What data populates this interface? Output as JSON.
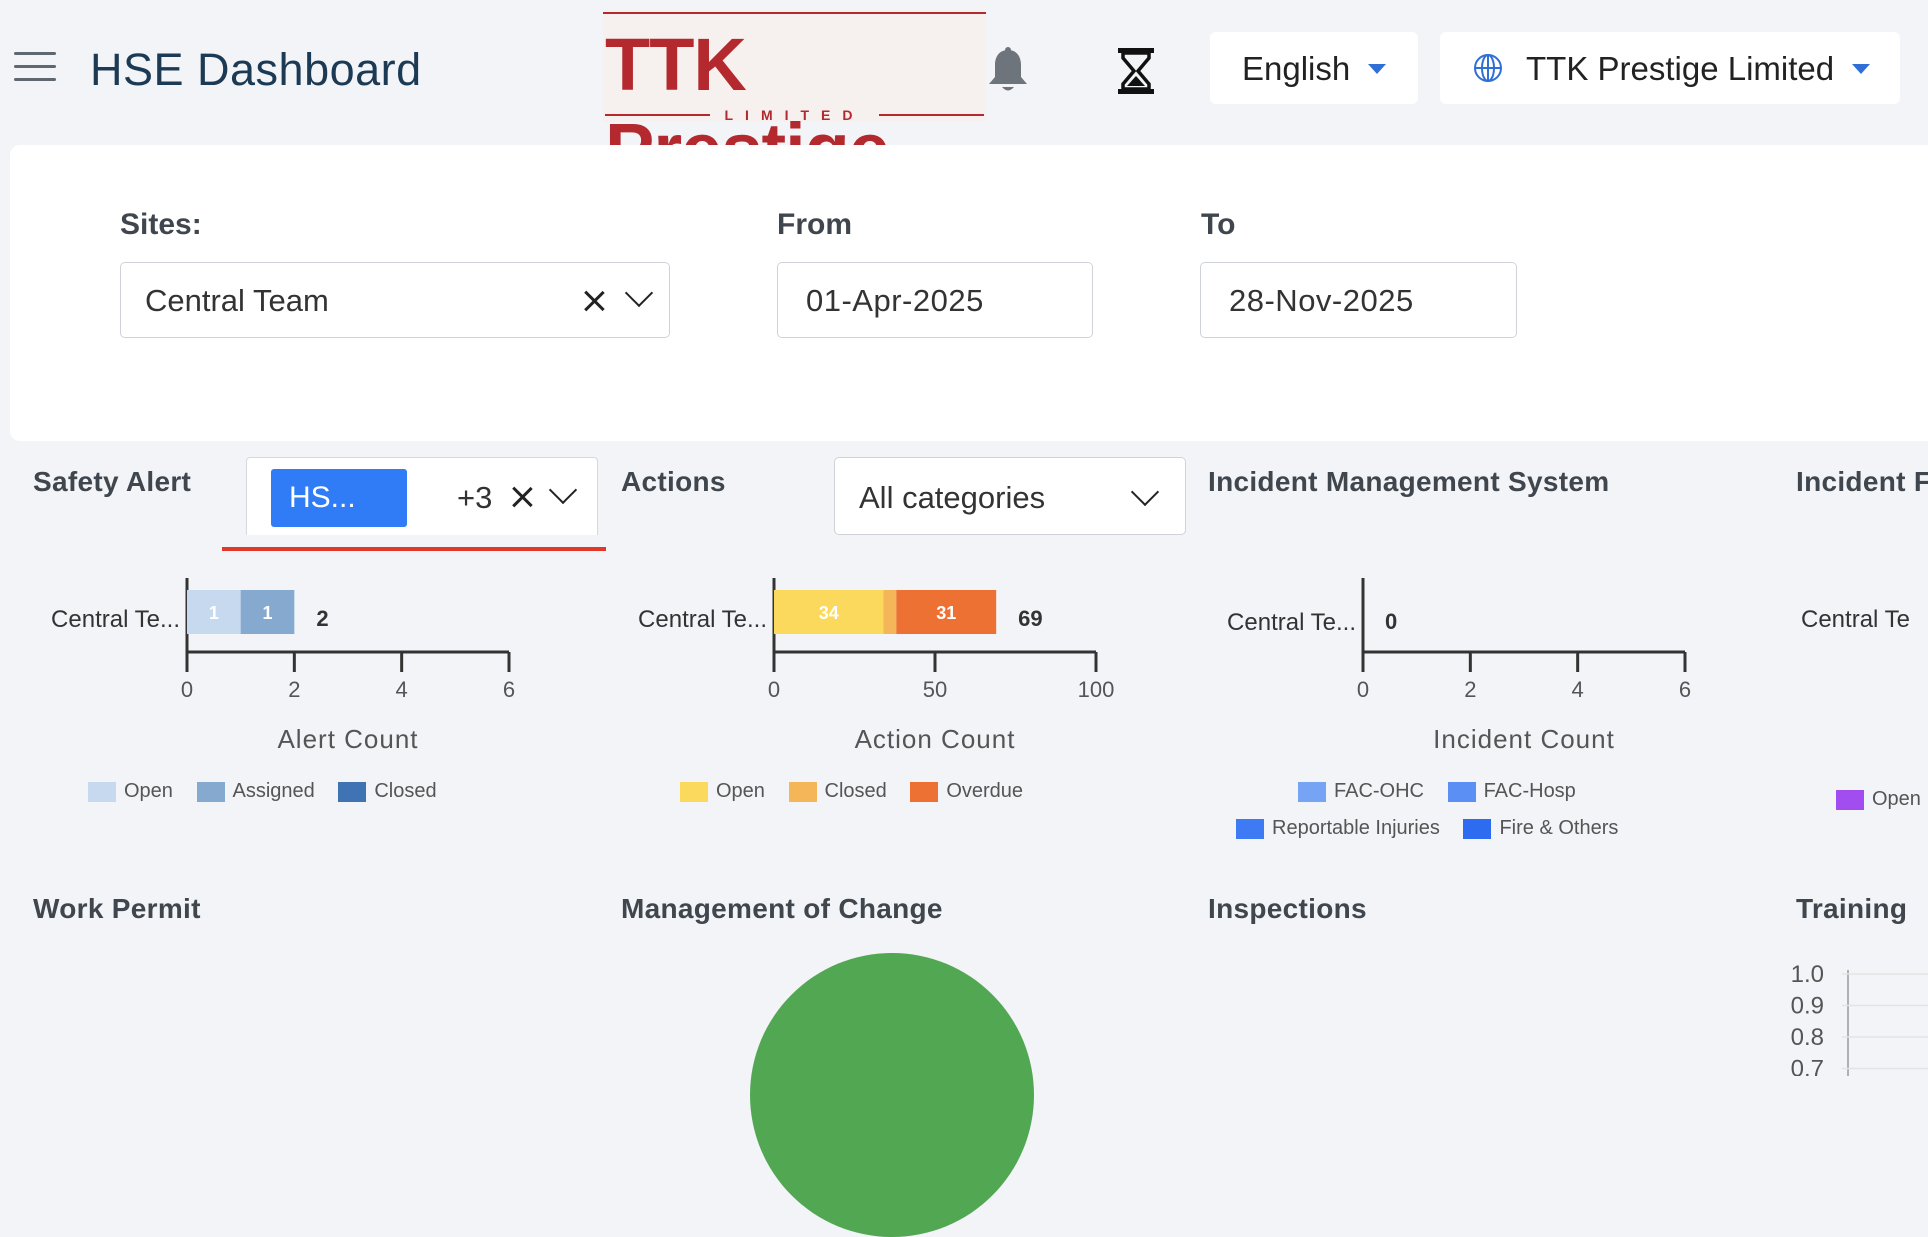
{
  "header": {
    "title": "HSE Dashboard",
    "logo_text": "TTK Prestige",
    "logo_subtext": "LIMITED",
    "language": "English",
    "company": "TTK Prestige Limited"
  },
  "filters": {
    "sites_label": "Sites:",
    "sites_value": "Central Team",
    "from_label": "From",
    "from_value": "01-Apr-2025",
    "to_label": "To",
    "to_value": "28-Nov-2025"
  },
  "widgets": {
    "safety_alert": {
      "title": "Safety Alert",
      "chip_label": "HS...",
      "more_count": "+3"
    },
    "actions": {
      "title": "Actions",
      "category_value": "All categories"
    },
    "incident_mgmt": {
      "title": "Incident Management System"
    },
    "incident_partial": {
      "title": "Incident F",
      "row_label": "Central Te",
      "legend_open": "Open"
    },
    "work_permit": {
      "title": "Work Permit"
    },
    "moc": {
      "title": "Management of Change"
    },
    "inspections": {
      "title": "Inspections"
    },
    "training": {
      "title": "Training",
      "ticks": [
        "1.0",
        "0.9",
        "0.8",
        "0.7"
      ]
    }
  },
  "colors": {
    "accent": "#2f7cf6",
    "alert_open": "#c6d9ef",
    "alert_assigned": "#86a9cf",
    "alert_closed": "#3f73b4",
    "action_open": "#fad95c",
    "action_closed": "#f4b659",
    "action_overdue": "#ee7134",
    "inc_fac_ohc": "#76a3f3",
    "inc_fac_hosp": "#5b8ff4",
    "inc_reportable": "#3f7af5",
    "inc_fire": "#2d6cf0",
    "incident_open": "#a24df0",
    "moc_pie": "#52a753"
  },
  "chart_data": [
    {
      "type": "bar",
      "orientation": "horizontal",
      "stacked": true,
      "categories": [
        "Central Te..."
      ],
      "series": [
        {
          "name": "Open",
          "values": [
            1
          ]
        },
        {
          "name": "Assigned",
          "values": [
            1
          ]
        },
        {
          "name": "Closed",
          "values": [
            0
          ]
        }
      ],
      "totals": [
        2
      ],
      "xlabel": "Alert Count",
      "xlim": [
        0,
        6
      ],
      "xticks": [
        0,
        2,
        4,
        6
      ],
      "legend": "bottom"
    },
    {
      "type": "bar",
      "orientation": "horizontal",
      "stacked": true,
      "categories": [
        "Central Te..."
      ],
      "series": [
        {
          "name": "Open",
          "values": [
            34
          ]
        },
        {
          "name": "Closed",
          "values": [
            4
          ]
        },
        {
          "name": "Overdue",
          "values": [
            31
          ]
        }
      ],
      "totals": [
        69
      ],
      "xlabel": "Action Count",
      "xlim": [
        0,
        100
      ],
      "xticks": [
        0,
        50,
        100
      ],
      "legend": "bottom"
    },
    {
      "type": "bar",
      "orientation": "horizontal",
      "stacked": true,
      "categories": [
        "Central Te..."
      ],
      "series": [
        {
          "name": "FAC-OHC",
          "values": [
            0
          ]
        },
        {
          "name": "FAC-Hosp",
          "values": [
            0
          ]
        },
        {
          "name": "Reportable Injuries",
          "values": [
            0
          ]
        },
        {
          "name": "Fire & Others",
          "values": [
            0
          ]
        }
      ],
      "totals": [
        0
      ],
      "xlabel": "Incident Count",
      "xlim": [
        0,
        6
      ],
      "xticks": [
        0,
        2,
        4,
        6
      ],
      "legend": "bottom"
    },
    {
      "type": "pie",
      "title": "Management of Change",
      "slices": [
        {
          "value": 1
        }
      ]
    }
  ]
}
